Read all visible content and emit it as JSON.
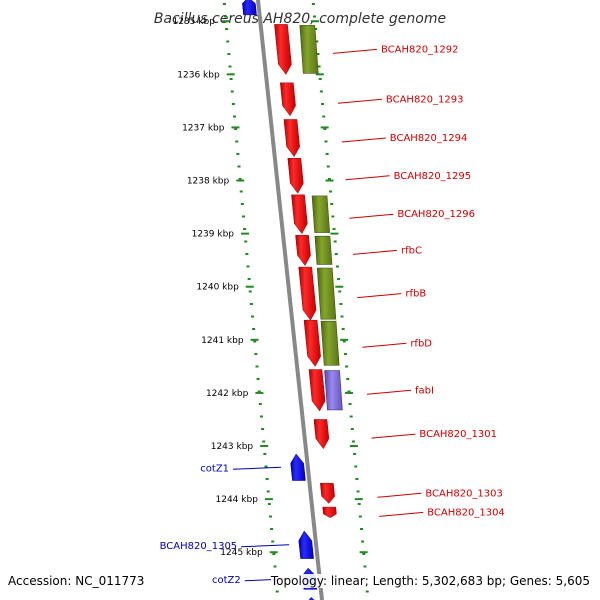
{
  "title": "Bacillus cereus AH820, complete genome",
  "footer": {
    "accession": "Accession: NC_011773",
    "summary": "Topology: linear; Length: 5,302,683 bp; Genes: 5,605"
  },
  "colors": {
    "backbone": "#888888",
    "tick": "#228822",
    "forward_gene": "#0000ee",
    "reverse_gene": "#ee0000",
    "reverse_label": "#cc0000",
    "forward_label": "#0000aa",
    "feature_olive": "#6f8f1f",
    "feature_purple": "#7766cc"
  },
  "scale": {
    "start_kbp": 1234.6,
    "end_kbp": 1245.9,
    "tick_labels": [
      {
        "kbp": 1235,
        "text": "1235 kbp"
      },
      {
        "kbp": 1236,
        "text": "1236 kbp"
      },
      {
        "kbp": 1237,
        "text": "1237 kbp"
      },
      {
        "kbp": 1238,
        "text": "1238 kbp"
      },
      {
        "kbp": 1239,
        "text": "1239 kbp"
      },
      {
        "kbp": 1240,
        "text": "1240 kbp"
      },
      {
        "kbp": 1241,
        "text": "1241 kbp"
      },
      {
        "kbp": 1242,
        "text": "1242 kbp"
      },
      {
        "kbp": 1243,
        "text": "1243 kbp"
      },
      {
        "kbp": 1244,
        "text": "1244 kbp"
      },
      {
        "kbp": 1245,
        "text": "1245 kbp"
      }
    ]
  },
  "genes": [
    {
      "label": "",
      "strand": "+",
      "start_kbp": 1234.55,
      "end_kbp": 1234.88,
      "feature": "none"
    },
    {
      "label": "BCAH820_1292",
      "strand": "-",
      "start_kbp": 1235.06,
      "end_kbp": 1236.0,
      "feature": "olive"
    },
    {
      "label": "BCAH820_1293",
      "strand": "-",
      "start_kbp": 1236.16,
      "end_kbp": 1236.78,
      "feature": "none"
    },
    {
      "label": "BCAH820_1294",
      "strand": "-",
      "start_kbp": 1236.85,
      "end_kbp": 1237.55,
      "feature": "none"
    },
    {
      "label": "BCAH820_1295",
      "strand": "-",
      "start_kbp": 1237.58,
      "end_kbp": 1238.24,
      "feature": "none"
    },
    {
      "label": "BCAH820_1296",
      "strand": "-",
      "start_kbp": 1238.27,
      "end_kbp": 1239.0,
      "feature": "olive"
    },
    {
      "label": "rfbC",
      "strand": "-",
      "start_kbp": 1239.03,
      "end_kbp": 1239.6,
      "feature": "olive"
    },
    {
      "label": "rfbB",
      "strand": "-",
      "start_kbp": 1239.63,
      "end_kbp": 1240.63,
      "feature": "olive"
    },
    {
      "label": "rfbD",
      "strand": "-",
      "start_kbp": 1240.63,
      "end_kbp": 1241.5,
      "feature": "olive"
    },
    {
      "label": "fabI",
      "strand": "-",
      "start_kbp": 1241.56,
      "end_kbp": 1242.34,
      "feature": "purple"
    },
    {
      "label": "BCAH820_1301",
      "strand": "-",
      "start_kbp": 1242.5,
      "end_kbp": 1243.05,
      "feature": "none"
    },
    {
      "label": "cotZ1",
      "strand": "+",
      "start_kbp": 1243.15,
      "end_kbp": 1243.65,
      "feature": "none"
    },
    {
      "label": "BCAH820_1303",
      "strand": "-",
      "start_kbp": 1243.7,
      "end_kbp": 1244.08,
      "feature": "none"
    },
    {
      "label": "BCAH820_1304",
      "strand": "-",
      "start_kbp": 1244.15,
      "end_kbp": 1244.35,
      "feature": "none"
    },
    {
      "label": "BCAH820_1305",
      "strand": "+",
      "start_kbp": 1244.6,
      "end_kbp": 1245.12,
      "feature": "none"
    },
    {
      "label": "cotZ2",
      "strand": "+",
      "start_kbp": 1245.3,
      "end_kbp": 1245.7,
      "feature": "none"
    },
    {
      "label": "",
      "strand": "+",
      "start_kbp": 1245.85,
      "end_kbp": 1246.2,
      "feature": "none"
    }
  ]
}
